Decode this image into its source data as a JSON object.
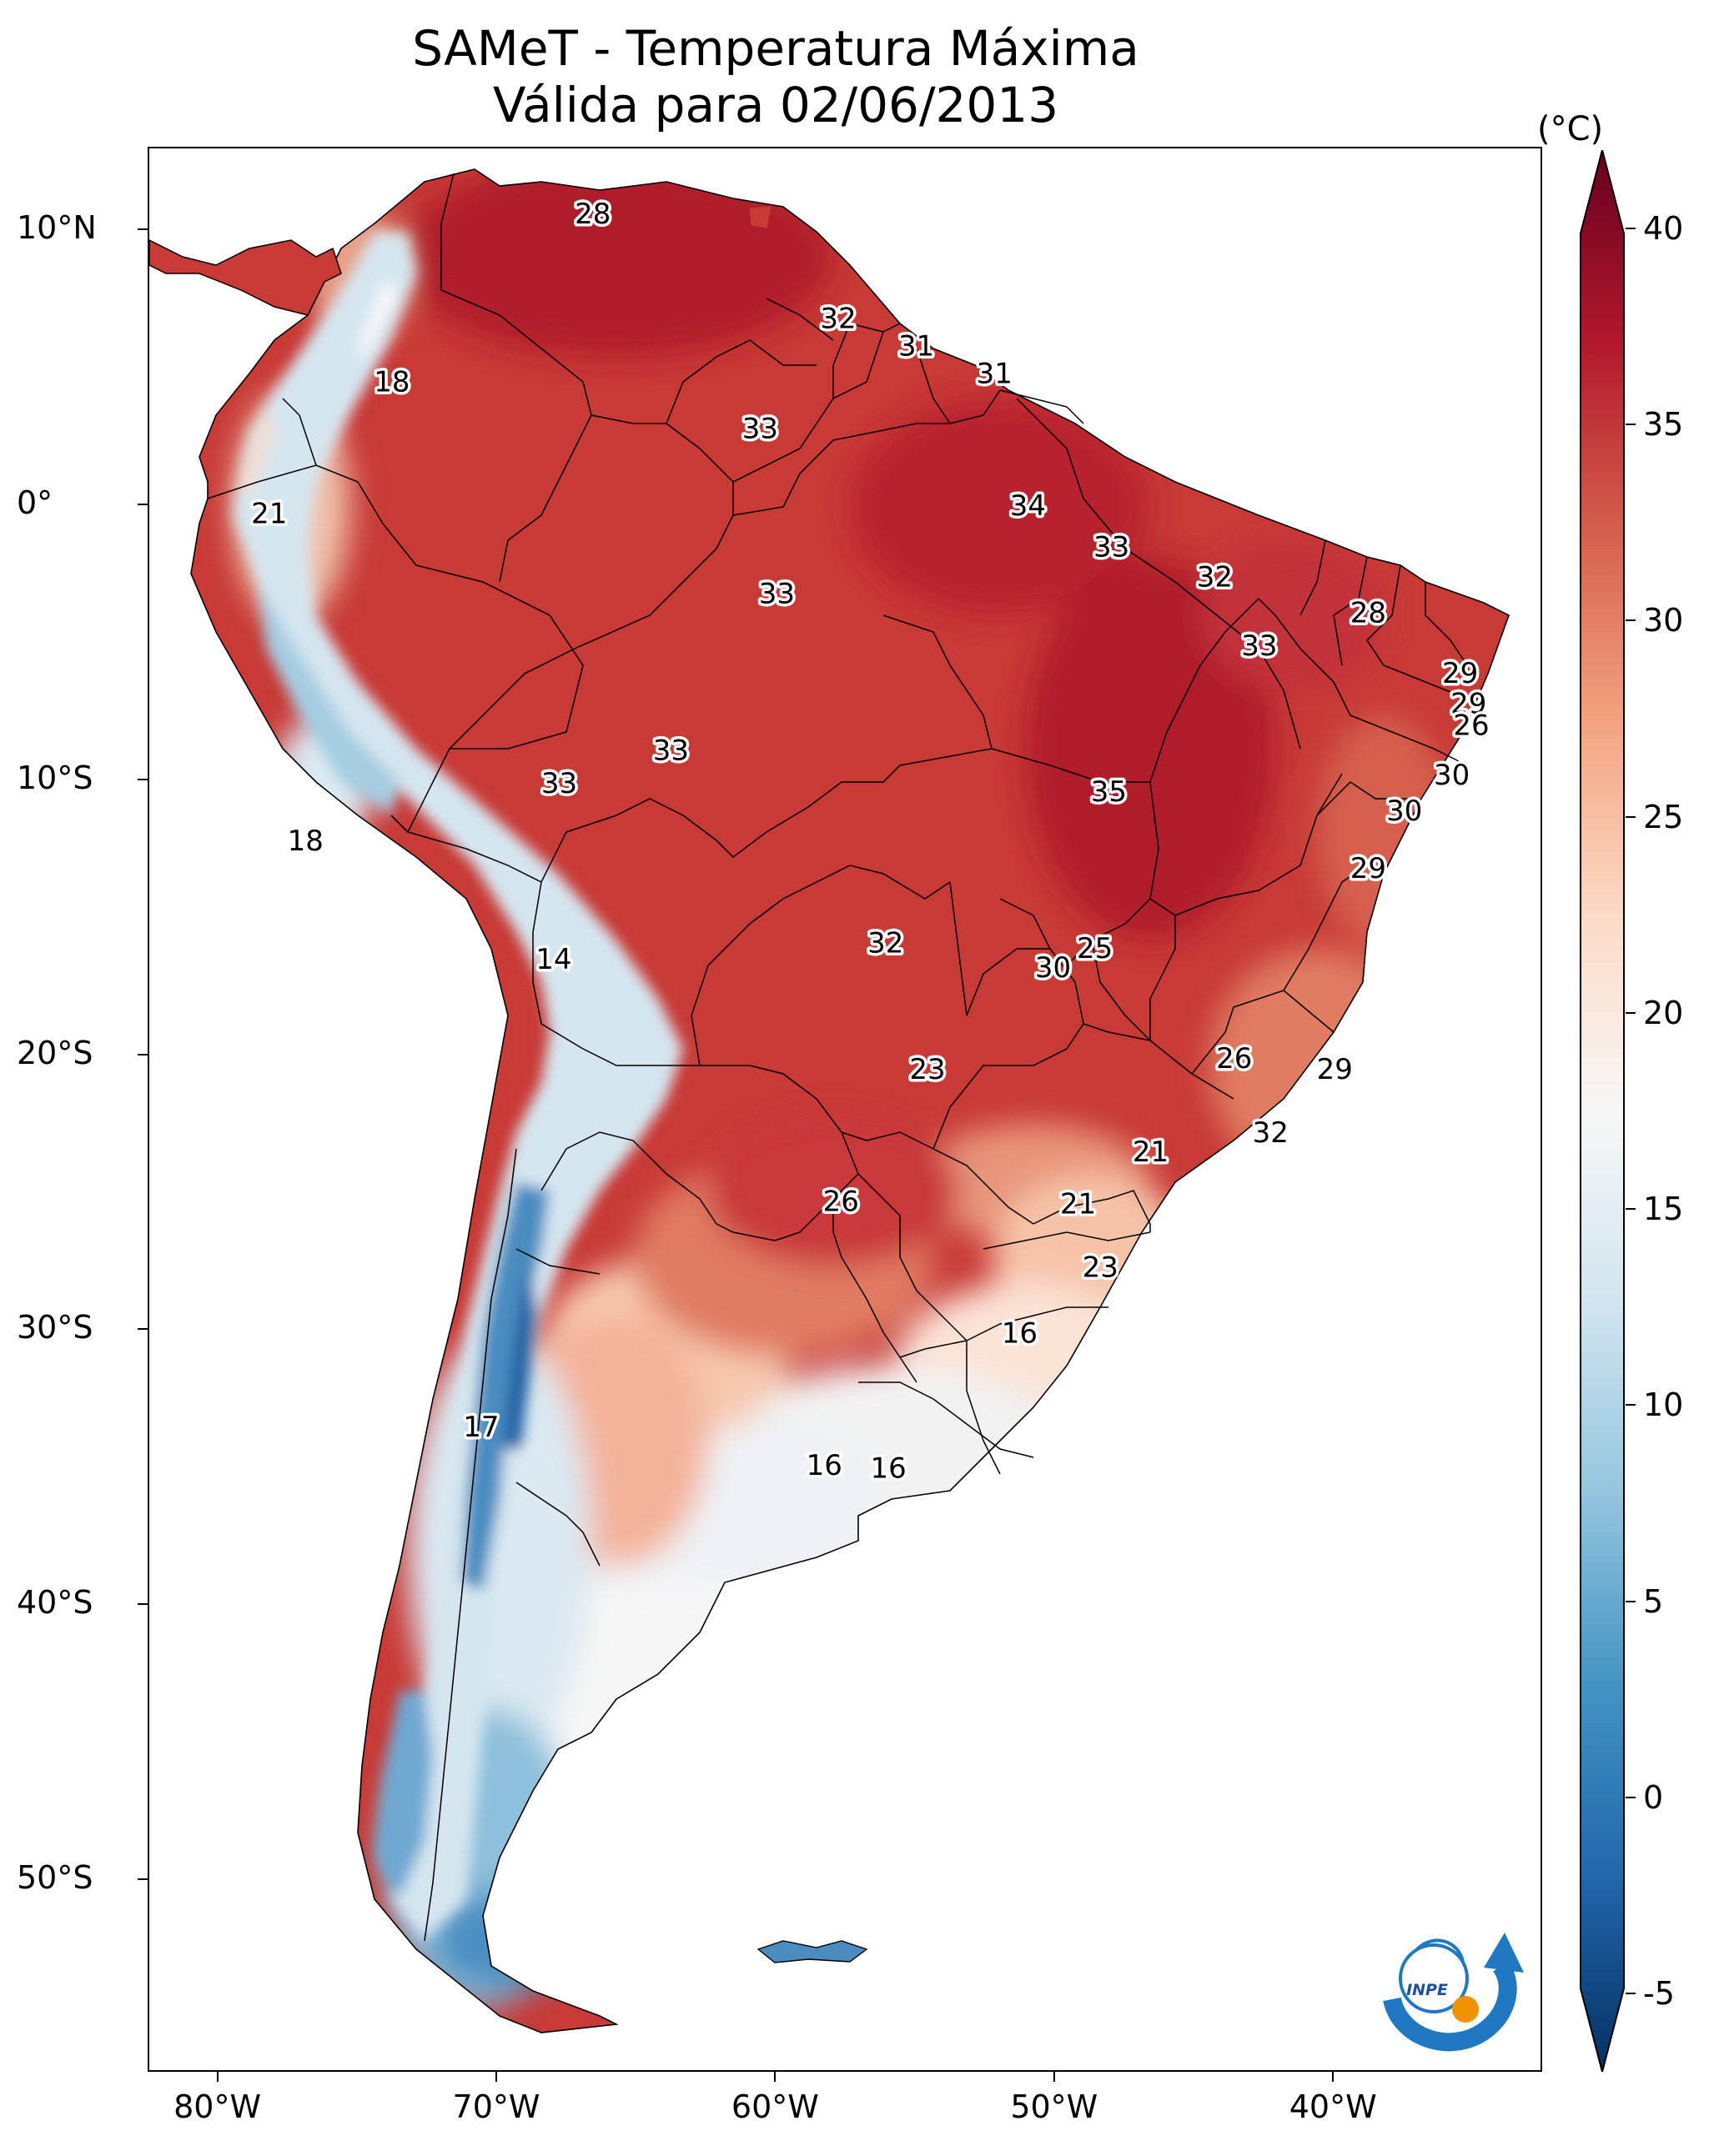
{
  "title": {
    "line1": "SAMeT - Temperatura Máxima",
    "line2": "Válida para 02/06/2013"
  },
  "map": {
    "variable": "maximum temperature",
    "region": "South America",
    "extent": {
      "lon": [
        -82.5,
        -32.5
      ],
      "lat": [
        -57,
        13
      ]
    },
    "lat_ticks": [
      {
        "label": "10°N",
        "value": 10
      },
      {
        "label": "0°",
        "value": 0
      },
      {
        "label": "10°S",
        "value": -10
      },
      {
        "label": "20°S",
        "value": -20
      },
      {
        "label": "30°S",
        "value": -30
      },
      {
        "label": "40°S",
        "value": -40
      },
      {
        "label": "50°S",
        "value": -50
      }
    ],
    "lon_ticks": [
      {
        "label": "80°W",
        "value": -80
      },
      {
        "label": "70°W",
        "value": -70
      },
      {
        "label": "60°W",
        "value": -60
      },
      {
        "label": "50°W",
        "value": -50
      },
      {
        "label": "40°W",
        "value": -40
      }
    ],
    "point_values": [
      {
        "text": "28",
        "lon": -66.6,
        "lat": 10.6
      },
      {
        "text": "32",
        "lon": -57.8,
        "lat": 6.8
      },
      {
        "text": "31",
        "lon": -55.0,
        "lat": 5.8
      },
      {
        "text": "31",
        "lon": -52.2,
        "lat": 4.8
      },
      {
        "text": "18",
        "lon": -73.8,
        "lat": 4.5
      },
      {
        "text": "33",
        "lon": -60.6,
        "lat": 2.8
      },
      {
        "text": "34",
        "lon": -51.0,
        "lat": 0.0
      },
      {
        "text": "21",
        "lon": -78.2,
        "lat": -0.3
      },
      {
        "text": "33",
        "lon": -48.0,
        "lat": -1.5
      },
      {
        "text": "32",
        "lon": -44.3,
        "lat": -2.6
      },
      {
        "text": "33",
        "lon": -60.0,
        "lat": -3.2
      },
      {
        "text": "28",
        "lon": -38.8,
        "lat": -3.9
      },
      {
        "text": "33",
        "lon": -42.7,
        "lat": -5.1
      },
      {
        "text": "29",
        "lon": -35.5,
        "lat": -6.1
      },
      {
        "text": "29",
        "lon": -35.2,
        "lat": -7.2
      },
      {
        "text": "26",
        "lon": -35.1,
        "lat": -8.0
      },
      {
        "text": "33",
        "lon": -63.8,
        "lat": -8.9
      },
      {
        "text": "33",
        "lon": -67.8,
        "lat": -10.1
      },
      {
        "text": "30",
        "lon": -35.8,
        "lat": -9.8
      },
      {
        "text": "35",
        "lon": -48.1,
        "lat": -10.4
      },
      {
        "text": "30",
        "lon": -37.5,
        "lat": -11.1
      },
      {
        "text": "18",
        "lon": -76.9,
        "lat": -12.2
      },
      {
        "text": "29",
        "lon": -38.8,
        "lat": -13.2
      },
      {
        "text": "14",
        "lon": -68.0,
        "lat": -16.5
      },
      {
        "text": "32",
        "lon": -56.1,
        "lat": -15.9
      },
      {
        "text": "25",
        "lon": -48.6,
        "lat": -16.1
      },
      {
        "text": "30",
        "lon": -50.1,
        "lat": -16.8
      },
      {
        "text": "26",
        "lon": -43.6,
        "lat": -20.1
      },
      {
        "text": "23",
        "lon": -54.6,
        "lat": -20.5
      },
      {
        "text": "29",
        "lon": -40.0,
        "lat": -20.5
      },
      {
        "text": "32",
        "lon": -42.3,
        "lat": -22.8
      },
      {
        "text": "21",
        "lon": -46.6,
        "lat": -23.5
      },
      {
        "text": "26",
        "lon": -57.7,
        "lat": -25.3
      },
      {
        "text": "21",
        "lon": -49.2,
        "lat": -25.4
      },
      {
        "text": "23",
        "lon": -48.4,
        "lat": -27.7
      },
      {
        "text": "16",
        "lon": -51.3,
        "lat": -30.1
      },
      {
        "text": "17",
        "lon": -70.6,
        "lat": -33.5
      },
      {
        "text": "16",
        "lon": -58.3,
        "lat": -34.9
      },
      {
        "text": "16",
        "lon": -56.0,
        "lat": -35.0
      }
    ]
  },
  "colorbar": {
    "unit": "(°C)",
    "min": -7,
    "max": 42,
    "extend": "both",
    "ticks": [
      {
        "label": "40",
        "value": 40
      },
      {
        "label": "35",
        "value": 35
      },
      {
        "label": "30",
        "value": 30
      },
      {
        "label": "25",
        "value": 25
      },
      {
        "label": "20",
        "value": 20
      },
      {
        "label": "15",
        "value": 15
      },
      {
        "label": "10",
        "value": 10
      },
      {
        "label": "5",
        "value": 5
      },
      {
        "label": "0",
        "value": 0
      },
      {
        "label": "-5",
        "value": -5
      }
    ],
    "colors": [
      "#053061",
      "#2166ac",
      "#4393c3",
      "#92c5de",
      "#d1e5f0",
      "#f7f7f7",
      "#fddbc7",
      "#f4a582",
      "#d6604d",
      "#b2182b",
      "#67001f"
    ]
  },
  "logo": {
    "text": "INPE"
  }
}
